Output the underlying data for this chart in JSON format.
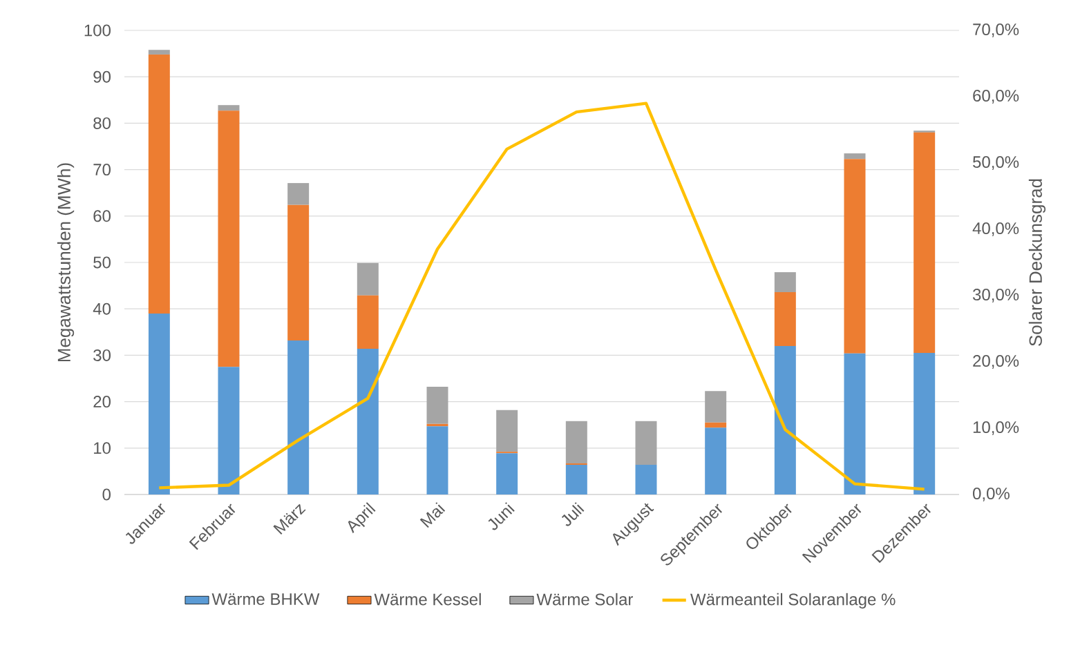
{
  "chart_data": {
    "type": "bar",
    "stacked": true,
    "ylabel": "Megawattstunden (MWh)",
    "y2label": "Solarer Deckunsgrad",
    "categories": [
      "Januar",
      "Februar",
      "März",
      "April",
      "Mai",
      "Juni",
      "Juli",
      "August",
      "September",
      "Oktober",
      "November",
      "Dezember"
    ],
    "series": [
      {
        "name": "Wärme BHKW",
        "color": "#5b9bd5",
        "values": [
          39.0,
          27.5,
          33.2,
          31.4,
          14.7,
          8.9,
          6.4,
          6.4,
          14.4,
          32.0,
          30.4,
          30.5
        ]
      },
      {
        "name": "Wärme Kessel",
        "color": "#ed7d31",
        "values": [
          55.8,
          55.2,
          29.2,
          11.5,
          0.5,
          0.3,
          0.3,
          0,
          1.1,
          11.6,
          41.9,
          47.5
        ]
      },
      {
        "name": "Wärme Solar",
        "color": "#a5a5a5",
        "values": [
          1.0,
          1.2,
          4.7,
          7.0,
          8.0,
          9.0,
          9.1,
          9.4,
          6.8,
          4.3,
          1.2,
          0.4
        ]
      },
      {
        "name": "Wärmeanteil Solaranlage %",
        "type": "line",
        "axis": "y2",
        "color": "#ffc000",
        "values": [
          1.0,
          1.4,
          8.2,
          14.5,
          37.0,
          52.1,
          57.7,
          59.0,
          33.9,
          9.8,
          1.6,
          0.8
        ]
      }
    ],
    "ylim": [
      0,
      100
    ],
    "yticks": [
      0,
      10,
      20,
      30,
      40,
      50,
      60,
      70,
      80,
      90,
      100
    ],
    "y2lim": [
      0,
      70
    ],
    "y2ticks": [
      {
        "value": 0,
        "label": "0,0%"
      },
      {
        "value": 10,
        "label": "10,0%"
      },
      {
        "value": 20,
        "label": "20,0%"
      },
      {
        "value": 30,
        "label": "30,0%"
      },
      {
        "value": 40,
        "label": "40,0%"
      },
      {
        "value": 50,
        "label": "50,0%"
      },
      {
        "value": 60,
        "label": "60,0%"
      },
      {
        "value": 70,
        "label": "70,0%"
      }
    ],
    "grid": "y",
    "legend": "bottom"
  }
}
